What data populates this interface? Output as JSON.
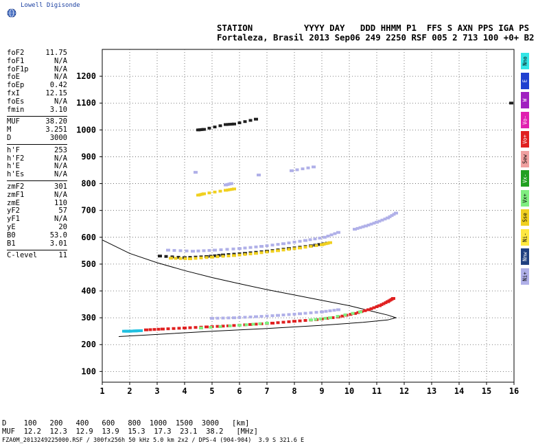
{
  "app": {
    "logo_text": "Lowell Digisonde"
  },
  "header": {
    "line1": "STATION          YYYY DAY   DDD HHMM P1  FFS S AXN PPS IGA PS",
    "line2": "Fortaleza, Brasil 2013 Sep06 249 2250 RSF 005 2 713 100 +0+ B2"
  },
  "params": {
    "groups": [
      [
        {
          "label": "foF2",
          "value": "11.75"
        },
        {
          "label": "foF1",
          "value": "N/A"
        },
        {
          "label": "foF1p",
          "value": "N/A"
        },
        {
          "label": "foE",
          "value": "N/A"
        },
        {
          "label": "foEp",
          "value": "0.42"
        },
        {
          "label": "fxI",
          "value": "12.15"
        },
        {
          "label": "foEs",
          "value": "N/A"
        },
        {
          "label": "fmin",
          "value": "3.10"
        }
      ],
      [
        {
          "label": "MUF",
          "value": "38.20"
        },
        {
          "label": "M",
          "value": "3.251"
        },
        {
          "label": "D",
          "value": "3000"
        }
      ],
      [
        {
          "label": "h'F",
          "value": "253"
        },
        {
          "label": "h'F2",
          "value": "N/A"
        },
        {
          "label": "h'E",
          "value": "N/A"
        },
        {
          "label": "h'Es",
          "value": "N/A"
        }
      ],
      [
        {
          "label": "zmF2",
          "value": "301"
        },
        {
          "label": "zmF1",
          "value": "N/A"
        },
        {
          "label": "zmE",
          "value": "110"
        },
        {
          "label": "yF2",
          "value": "57"
        },
        {
          "label": "yF1",
          "value": "N/A"
        },
        {
          "label": "yE",
          "value": "20"
        },
        {
          "label": "B0",
          "value": "53.0"
        },
        {
          "label": "B1",
          "value": "3.01"
        }
      ],
      [
        {
          "label": "C-level",
          "value": "11"
        }
      ]
    ]
  },
  "bottom": {
    "d_line": "D    100   200   400   600   800  1000  1500  3000   [km]",
    "muf_line": "MUF  12.2  12.3  12.9  13.9  15.3  17.3  23.1  38.2   [MHz]"
  },
  "footer": {
    "text": "FZA0M_2013249225000.RSF / 300fx256h 50 kHz 5.0 km 2x2 / DPS-4 (904-904)  3.9 S 321.6 E"
  },
  "legend": [
    {
      "label": "Nno",
      "color": "#33e6e6"
    },
    {
      "label": "E",
      "color": "#2040d0"
    },
    {
      "label": "W",
      "color": "#a020c0"
    },
    {
      "label": "Vo-",
      "color": "#e020b0"
    },
    {
      "label": "Vo+",
      "color": "#e02020"
    },
    {
      "label": "Sew",
      "color": "#f0a0a0"
    },
    {
      "label": "Vx-",
      "color": "#20a020"
    },
    {
      "label": "Vx+",
      "color": "#80ee80"
    },
    {
      "label": "Sse",
      "color": "#f0d020"
    },
    {
      "label": "Ni-",
      "color": "#ffe840"
    },
    {
      "label": "Nnw",
      "color": "#204080"
    },
    {
      "label": "Ni+",
      "color": "#b0b0e8"
    }
  ],
  "chart_data": {
    "type": "scatter",
    "title": "",
    "xlabel": "",
    "ylabel": "",
    "xlim": [
      1,
      16
    ],
    "ylim": [
      60,
      1300
    ],
    "x_ticks": [
      1,
      2,
      3,
      4,
      5,
      6,
      7,
      8,
      9,
      10,
      11,
      12,
      13,
      14,
      15,
      16
    ],
    "y_ticks": [
      100,
      200,
      300,
      400,
      500,
      600,
      700,
      800,
      900,
      1000,
      1100,
      1200
    ],
    "grid": true,
    "series": [
      {
        "color": "#e02020",
        "kind": "trace",
        "points": [
          [
            2.6,
            255
          ],
          [
            3.2,
            258
          ],
          [
            4.0,
            262
          ],
          [
            4.8,
            266
          ],
          [
            5.6,
            270
          ],
          [
            6.4,
            275
          ],
          [
            7.2,
            280
          ],
          [
            8.0,
            287
          ],
          [
            8.8,
            293
          ],
          [
            9.6,
            303
          ],
          [
            10.2,
            316
          ],
          [
            10.7,
            330
          ],
          [
            11.1,
            345
          ],
          [
            11.4,
            360
          ],
          [
            11.6,
            372
          ]
        ]
      },
      {
        "color": "#202020",
        "kind": "trace",
        "points": [
          [
            3.1,
            530
          ],
          [
            4.0,
            524
          ],
          [
            4.8,
            528
          ],
          [
            5.4,
            534
          ],
          [
            6.2,
            540
          ],
          [
            7.0,
            548
          ],
          [
            7.8,
            558
          ],
          [
            8.6,
            568
          ],
          [
            9.2,
            578
          ]
        ]
      },
      {
        "color": "#f0d020",
        "kind": "trace",
        "points": [
          [
            3.5,
            522
          ],
          [
            4.2,
            520
          ],
          [
            5.0,
            526
          ],
          [
            5.8,
            532
          ],
          [
            6.6,
            540
          ],
          [
            7.4,
            550
          ],
          [
            8.2,
            560
          ],
          [
            9.0,
            572
          ],
          [
            9.3,
            580
          ]
        ]
      },
      {
        "color": "#b0b0e8",
        "kind": "trace",
        "points": [
          [
            3.4,
            552
          ],
          [
            4.3,
            548
          ],
          [
            5.1,
            552
          ],
          [
            6.0,
            558
          ],
          [
            6.8,
            566
          ],
          [
            7.6,
            576
          ],
          [
            8.4,
            588
          ],
          [
            9.1,
            600
          ],
          [
            9.6,
            618
          ]
        ]
      },
      {
        "color": "#b0b0e8",
        "kind": "trace",
        "points": [
          [
            5.0,
            298
          ],
          [
            5.8,
            300
          ],
          [
            6.6,
            304
          ],
          [
            7.4,
            309
          ],
          [
            8.2,
            315
          ],
          [
            9.0,
            322
          ],
          [
            9.6,
            330
          ]
        ]
      },
      {
        "color": "#b0b0e8",
        "kind": "trace",
        "points": [
          [
            10.2,
            630
          ],
          [
            10.6,
            642
          ],
          [
            11.0,
            656
          ],
          [
            11.4,
            672
          ],
          [
            11.7,
            690
          ]
        ]
      },
      {
        "color": "#f0d020",
        "kind": "trace",
        "points": [
          [
            4.5,
            757
          ],
          [
            4.7,
            762
          ],
          [
            5.5,
            775
          ],
          [
            5.8,
            780
          ]
        ]
      },
      {
        "color": "#b0b0e8",
        "kind": "trace",
        "points": [
          [
            5.5,
            795
          ],
          [
            5.7,
            800
          ],
          [
            7.9,
            848
          ],
          [
            8.7,
            862
          ],
          [
            4.4,
            842
          ],
          [
            6.7,
            832
          ]
        ]
      },
      {
        "color": "#202020",
        "kind": "trace",
        "points": [
          [
            4.5,
            1000
          ],
          [
            4.7,
            1002
          ],
          [
            5.5,
            1020
          ],
          [
            5.8,
            1022
          ],
          [
            6.6,
            1040
          ],
          [
            15.9,
            1100
          ]
        ]
      },
      {
        "color": "#20c0e0",
        "kind": "trace",
        "points": [
          [
            1.8,
            250
          ],
          [
            2.0,
            250
          ],
          [
            2.2,
            251
          ],
          [
            2.4,
            252
          ]
        ]
      },
      {
        "color": "#80ee80",
        "kind": "trace",
        "points": [
          [
            4.6,
            262
          ],
          [
            6.0,
            272
          ],
          [
            7.0,
            280
          ],
          [
            8.6,
            292
          ],
          [
            9.3,
            300
          ],
          [
            10.4,
            322
          ]
        ]
      }
    ],
    "profile_curve": [
      [
        1.0,
        590
      ],
      [
        2.0,
        540
      ],
      [
        3.0,
        505
      ],
      [
        4.0,
        476
      ],
      [
        5.0,
        450
      ],
      [
        6.0,
        427
      ],
      [
        7.0,
        405
      ],
      [
        8.0,
        385
      ],
      [
        9.0,
        365
      ],
      [
        10.0,
        345
      ],
      [
        10.8,
        325
      ],
      [
        11.4,
        310
      ],
      [
        11.7,
        300
      ],
      [
        11.4,
        292
      ],
      [
        10.5,
        283
      ],
      [
        9.0,
        272
      ],
      [
        7.0,
        260
      ],
      [
        5.0,
        250
      ],
      [
        3.0,
        238
      ],
      [
        1.6,
        230
      ]
    ]
  }
}
